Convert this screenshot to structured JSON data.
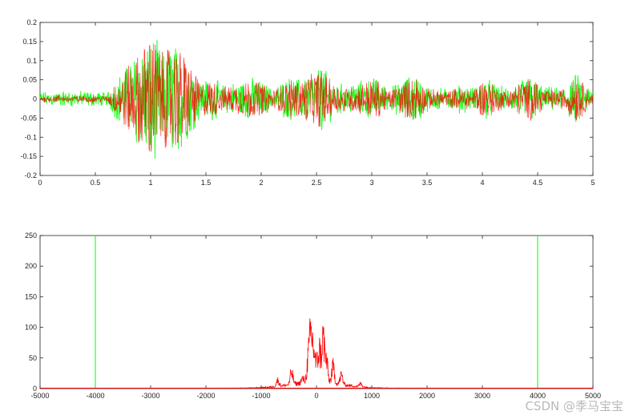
{
  "chart_data": [
    {
      "type": "line",
      "xlim": [
        0,
        5
      ],
      "ylim": [
        -0.2,
        0.2
      ],
      "x_ticks": [
        "0",
        "0.5",
        "1",
        "1.5",
        "2",
        "2.5",
        "3",
        "3.5",
        "4",
        "4.5",
        "5"
      ],
      "y_ticks": [
        "-0.2",
        "-0.15",
        "-0.1",
        "-0.05",
        "0",
        "0.05",
        "0.1",
        "0.15",
        "0.2"
      ],
      "series": [
        {
          "color": "#00ff00",
          "noise_level": 0.012,
          "envelope": [
            [
              0.0,
              0.01
            ],
            [
              0.2,
              0.012
            ],
            [
              0.4,
              0.012
            ],
            [
              0.6,
              0.01
            ],
            [
              0.8,
              0.09
            ],
            [
              0.9,
              0.12
            ],
            [
              1.0,
              0.17
            ],
            [
              1.05,
              0.15
            ],
            [
              1.1,
              0.12
            ],
            [
              1.2,
              0.14
            ],
            [
              1.3,
              0.12
            ],
            [
              1.45,
              0.04
            ],
            [
              1.55,
              0.05
            ],
            [
              1.65,
              0.03
            ],
            [
              1.8,
              0.04
            ],
            [
              1.9,
              0.05
            ],
            [
              2.0,
              0.04
            ],
            [
              2.1,
              0.02
            ],
            [
              2.25,
              0.05
            ],
            [
              2.35,
              0.045
            ],
            [
              2.5,
              0.07
            ],
            [
              2.55,
              0.08
            ],
            [
              2.65,
              0.04
            ],
            [
              2.75,
              0.03
            ],
            [
              2.85,
              0.035
            ],
            [
              2.95,
              0.045
            ],
            [
              3.05,
              0.05
            ],
            [
              3.15,
              0.02
            ],
            [
              3.35,
              0.055
            ],
            [
              3.4,
              0.06
            ],
            [
              3.5,
              0.025
            ],
            [
              3.7,
              0.02
            ],
            [
              3.8,
              0.03
            ],
            [
              3.9,
              0.02
            ],
            [
              4.0,
              0.05
            ],
            [
              4.05,
              0.045
            ],
            [
              4.2,
              0.02
            ],
            [
              4.4,
              0.05
            ],
            [
              4.45,
              0.055
            ],
            [
              4.55,
              0.025
            ],
            [
              4.7,
              0.02
            ],
            [
              4.85,
              0.06
            ],
            [
              4.9,
              0.045
            ],
            [
              5.0,
              0.012
            ]
          ]
        },
        {
          "color": "#ff0000",
          "noise_level": 0.004,
          "envelope": [
            [
              0.0,
              0.006
            ],
            [
              0.2,
              0.007
            ],
            [
              0.4,
              0.007
            ],
            [
              0.6,
              0.006
            ],
            [
              0.8,
              0.09
            ],
            [
              0.9,
              0.12
            ],
            [
              1.0,
              0.17
            ],
            [
              1.05,
              0.15
            ],
            [
              1.1,
              0.12
            ],
            [
              1.2,
              0.14
            ],
            [
              1.3,
              0.12
            ],
            [
              1.45,
              0.04
            ],
            [
              1.55,
              0.05
            ],
            [
              1.65,
              0.03
            ],
            [
              1.8,
              0.04
            ],
            [
              1.9,
              0.05
            ],
            [
              2.0,
              0.04
            ],
            [
              2.1,
              0.02
            ],
            [
              2.25,
              0.05
            ],
            [
              2.35,
              0.045
            ],
            [
              2.5,
              0.07
            ],
            [
              2.55,
              0.08
            ],
            [
              2.65,
              0.04
            ],
            [
              2.75,
              0.03
            ],
            [
              2.85,
              0.035
            ],
            [
              2.95,
              0.045
            ],
            [
              3.05,
              0.05
            ],
            [
              3.15,
              0.02
            ],
            [
              3.35,
              0.055
            ],
            [
              3.4,
              0.06
            ],
            [
              3.5,
              0.025
            ],
            [
              3.7,
              0.02
            ],
            [
              3.8,
              0.03
            ],
            [
              3.9,
              0.02
            ],
            [
              4.0,
              0.05
            ],
            [
              4.05,
              0.045
            ],
            [
              4.2,
              0.02
            ],
            [
              4.4,
              0.05
            ],
            [
              4.45,
              0.055
            ],
            [
              4.55,
              0.025
            ],
            [
              4.7,
              0.02
            ],
            [
              4.85,
              0.06
            ],
            [
              4.9,
              0.045
            ],
            [
              5.0,
              0.008
            ]
          ]
        }
      ]
    },
    {
      "type": "line",
      "xlim": [
        -5000,
        5000
      ],
      "ylim": [
        0,
        250
      ],
      "x_ticks": [
        "-5000",
        "-4000",
        "-3000",
        "-2000",
        "-1000",
        "0",
        "1000",
        "2000",
        "3000",
        "4000",
        "5000"
      ],
      "y_ticks": [
        "0",
        "50",
        "100",
        "150",
        "200",
        "250"
      ],
      "series": [
        {
          "color": "#00ff00",
          "spikes": [
            [
              -4000,
              250
            ],
            [
              4000,
              250
            ]
          ]
        },
        {
          "color": "#ff0000",
          "peaks": [
            [
              -250,
              10
            ],
            [
              -150,
              52
            ],
            [
              -100,
              103
            ],
            [
              -50,
              65
            ],
            [
              0,
              28
            ],
            [
              50,
              72
            ],
            [
              120,
              103
            ],
            [
              180,
              48
            ],
            [
              300,
              38
            ],
            [
              450,
              22
            ],
            [
              -450,
              28
            ],
            [
              -700,
              14
            ],
            [
              800,
              8
            ]
          ]
        }
      ]
    }
  ],
  "watermark": "CSDN @季马宝宝"
}
